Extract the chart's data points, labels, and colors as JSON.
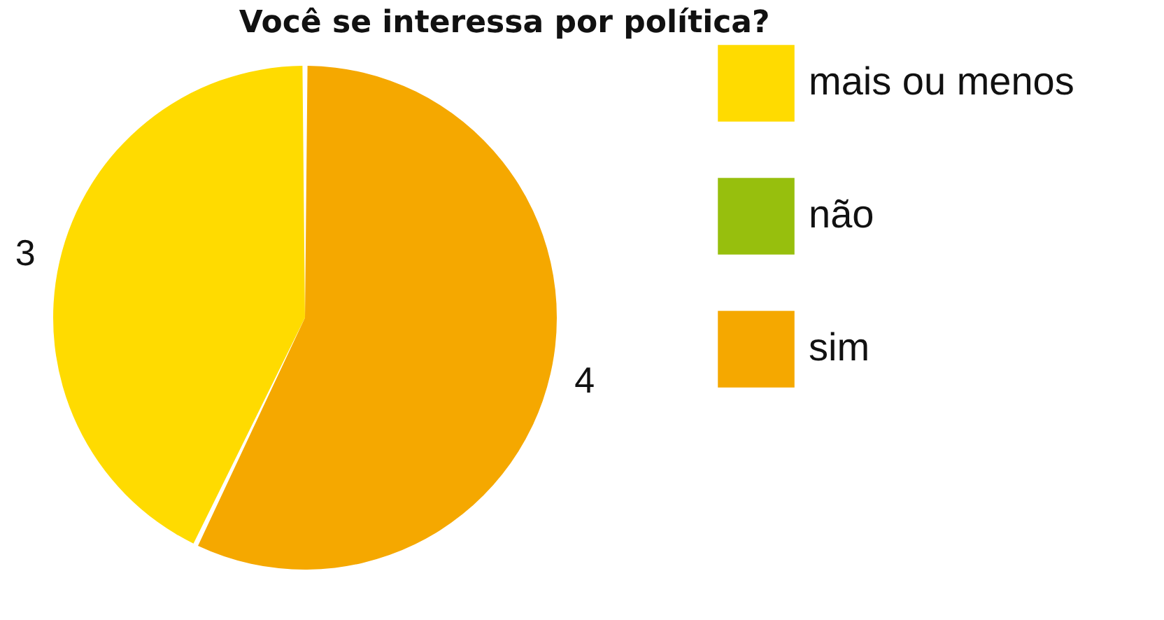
{
  "chart_data": {
    "type": "pie",
    "title": "Você se interessa por política?",
    "categories": [
      "mais ou menos",
      "não",
      "sim"
    ],
    "values": [
      3,
      0,
      4
    ],
    "colors": [
      "#ffdb00",
      "#97bf0d",
      "#f5a800"
    ],
    "value_labels": [
      "3",
      null,
      "4"
    ],
    "legend": "right"
  }
}
